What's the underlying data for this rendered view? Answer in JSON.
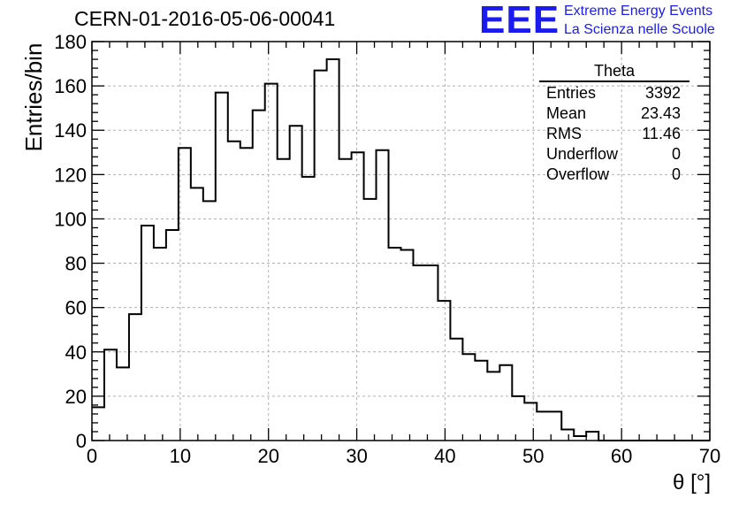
{
  "title": "CERN-01-2016-05-06-00041",
  "logo": {
    "mark": "EEE",
    "line1": "Extreme Energy Events",
    "line2": "La Scienza nelle Scuole",
    "color": "#1b1bf0"
  },
  "stats": {
    "name": "Theta",
    "rows": [
      {
        "label": "Entries",
        "value": "3392"
      },
      {
        "label": "Mean",
        "value": "23.43"
      },
      {
        "label": "RMS",
        "value": "11.46"
      },
      {
        "label": "Underflow",
        "value": "0"
      },
      {
        "label": "Overflow",
        "value": "0"
      }
    ]
  },
  "chart_data": {
    "type": "bar",
    "title": "CERN-01-2016-05-06-00041",
    "xlabel": "θ [°]",
    "ylabel": "Entries/bin",
    "xlim": [
      0,
      70
    ],
    "ylim": [
      0,
      180
    ],
    "bin_width": 1.4,
    "x_ticks": [
      0,
      10,
      20,
      30,
      40,
      50,
      60,
      70
    ],
    "y_ticks": [
      0,
      20,
      40,
      60,
      80,
      100,
      120,
      140,
      160,
      180
    ],
    "values": [
      15,
      41,
      33,
      57,
      97,
      87,
      95,
      132,
      114,
      108,
      157,
      135,
      132,
      149,
      161,
      127,
      142,
      119,
      167,
      172,
      127,
      130,
      109,
      131,
      87,
      86,
      79,
      79,
      63,
      46,
      39,
      36,
      31,
      34,
      20,
      17,
      13,
      13,
      5,
      2,
      4,
      0,
      0,
      0,
      0,
      0,
      0,
      0,
      0,
      0
    ],
    "grid": true,
    "line_color": "#000000"
  }
}
